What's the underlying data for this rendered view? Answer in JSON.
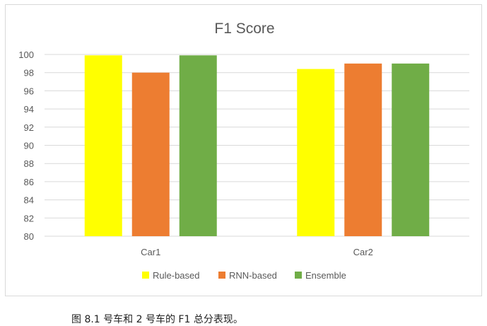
{
  "chart_data": {
    "type": "bar",
    "title": "F1 Score",
    "categories": [
      "Car1",
      "Car2"
    ],
    "series": [
      {
        "name": "Rule-based",
        "color": "#FFFF00",
        "values": [
          99.9,
          98.4
        ]
      },
      {
        "name": "RNN-based",
        "color": "#ED7D31",
        "values": [
          98.0,
          99.0
        ]
      },
      {
        "name": "Ensemble",
        "color": "#70AD47",
        "values": [
          99.9,
          99.0
        ]
      }
    ],
    "ylim": [
      80,
      100
    ],
    "yticks": [
      80,
      82,
      84,
      86,
      88,
      90,
      92,
      94,
      96,
      98,
      100
    ],
    "xlabel": "",
    "ylabel": "",
    "grid": true,
    "legend_position": "bottom"
  },
  "caption": "图 8.1 号车和 2 号车的 F1 总分表现。"
}
